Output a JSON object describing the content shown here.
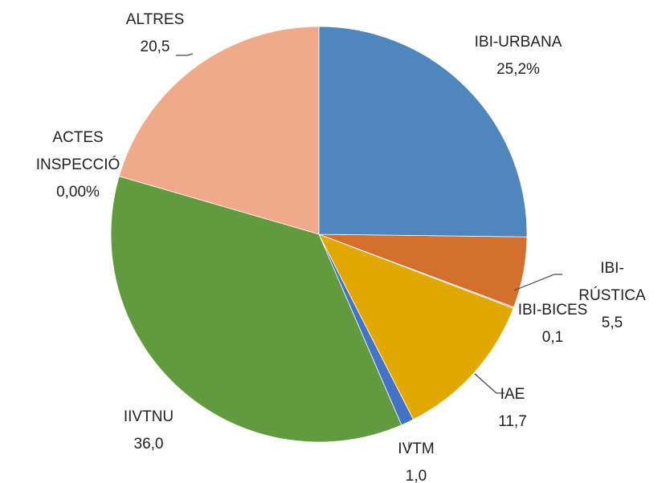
{
  "chart_data": {
    "type": "pie",
    "categories": [
      "IBI-URBANA",
      "IBI-RÚSTICA",
      "IBI-BICES",
      "IAE",
      "IVTM",
      "IIVTNU",
      "ACTES INSPECCIÓ",
      "ALTRES"
    ],
    "values": [
      25.2,
      5.5,
      0.1,
      11.7,
      1.0,
      36.0,
      0,
      20.5
    ],
    "value_labels": [
      "25,2%",
      "5,5",
      "0,1",
      "11,7",
      "1,0",
      "36,0",
      "0,00%",
      "20,5"
    ],
    "colors": [
      "#4f86be",
      "#d46f2d",
      "#a5a5a5",
      "#e2a800",
      "#4472c4",
      "#629a3f",
      "#9e480e",
      "#f0a98a"
    ]
  }
}
